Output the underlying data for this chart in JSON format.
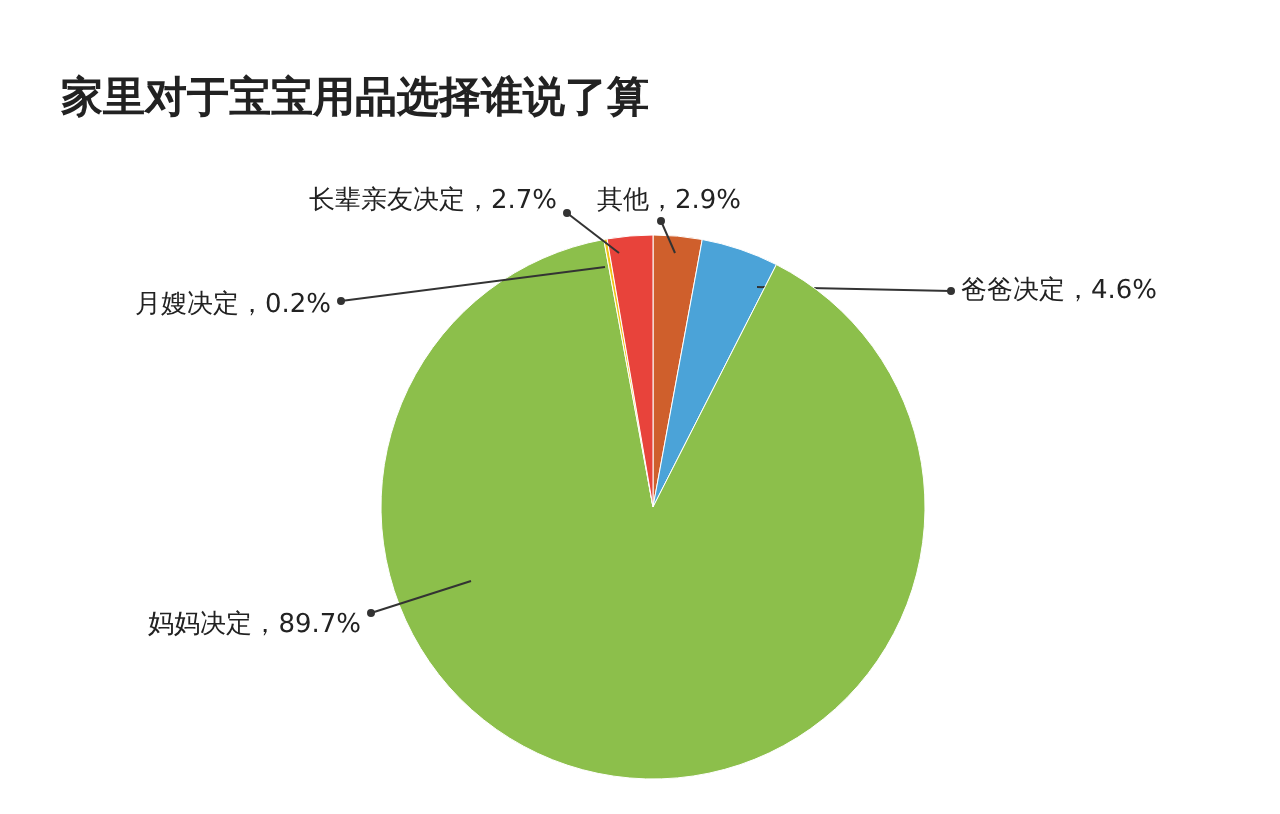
{
  "chart_data": {
    "type": "pie",
    "title": "家里对于宝宝用品选择谁说了算",
    "categories": [
      "其他",
      "爸爸决定",
      "妈妈决定",
      "月嫂决定",
      "长辈亲友决定"
    ],
    "values": [
      2.9,
      4.6,
      89.7,
      0.2,
      2.7
    ],
    "colors": [
      "#cf5f2c",
      "#4ba3d8",
      "#8cbf4b",
      "#f0c419",
      "#e8433b"
    ],
    "value_labels": [
      "2.9%",
      "4.6%",
      "89.7%",
      "0.2%",
      "2.7%"
    ]
  }
}
